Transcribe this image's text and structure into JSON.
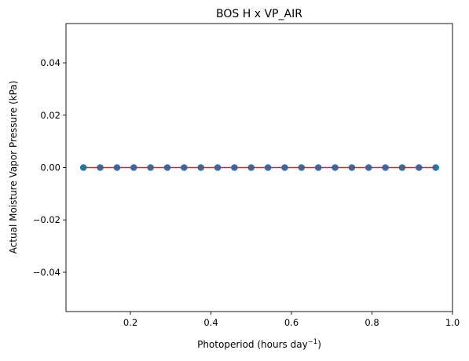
{
  "chart_data": {
    "type": "scatter",
    "title": "BOS H x VP_AIR",
    "xlabel_main": "Photoperiod (hours day",
    "xlabel_sup": "−1",
    "xlabel_close": ")",
    "ylabel": "Actual Moisture Vapor Pressure (kPa)",
    "xlim": [
      0.04,
      1.0
    ],
    "ylim": [
      -0.055,
      0.055
    ],
    "x_ticks": [
      {
        "value": 0.2,
        "label": "0.2"
      },
      {
        "value": 0.4,
        "label": "0.4"
      },
      {
        "value": 0.6,
        "label": "0.6"
      },
      {
        "value": 0.8,
        "label": "0.8"
      },
      {
        "value": 1.0,
        "label": "1.0"
      }
    ],
    "y_ticks": [
      {
        "value": 0.04,
        "label": "0.04"
      },
      {
        "value": 0.02,
        "label": "0.02"
      },
      {
        "value": 0.0,
        "label": "0.00"
      },
      {
        "value": -0.02,
        "label": "−0.02"
      },
      {
        "value": -0.04,
        "label": "−0.04"
      }
    ],
    "grid": false,
    "series": [
      {
        "kind": "scatter",
        "color": "#1f77b4",
        "x": [
          0.0833,
          0.125,
          0.1667,
          0.2083,
          0.25,
          0.2917,
          0.3333,
          0.375,
          0.4167,
          0.4583,
          0.5,
          0.5417,
          0.5833,
          0.625,
          0.6667,
          0.7083,
          0.75,
          0.7917,
          0.8333,
          0.875,
          0.9167,
          0.9583
        ],
        "y": [
          0,
          0,
          0,
          0,
          0,
          0,
          0,
          0,
          0,
          0,
          0,
          0,
          0,
          0,
          0,
          0,
          0,
          0,
          0,
          0,
          0,
          0
        ]
      },
      {
        "kind": "line",
        "color": "#d62728",
        "x": [
          0.0833,
          0.9583
        ],
        "y": [
          0,
          0
        ]
      }
    ]
  }
}
